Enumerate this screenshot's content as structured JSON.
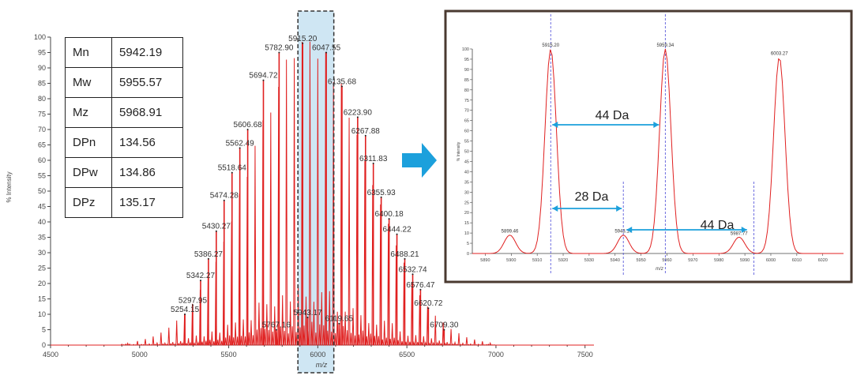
{
  "colors": {
    "trace": "#e02020",
    "axis": "#444444",
    "highlight": "#cfe6f3",
    "arrow": "#1ca0dc",
    "panel_border": "#4a3a30",
    "guide": "#4a4ad8"
  },
  "chart_data": [
    {
      "id": "main-spectrum",
      "type": "line",
      "xlabel": "m/z",
      "ylabel": "% Intensity",
      "xlim": [
        4500,
        7550
      ],
      "ylim": [
        0,
        100
      ],
      "xticks": [
        "4500",
        "5000",
        "5500",
        "6000",
        "6500",
        "7000",
        "7500"
      ],
      "yticks": [
        "0",
        "5",
        "10",
        "15",
        "20",
        "25",
        "30",
        "35",
        "40",
        "45",
        "50",
        "55",
        "60",
        "65",
        "70",
        "75",
        "80",
        "85",
        "90",
        "95",
        "100"
      ],
      "highlight_range": [
        5915,
        6090
      ],
      "peaks": [
        {
          "label": "5254.15",
          "x": 5254.15,
          "y": 10
        },
        {
          "label": "5297.95",
          "x": 5297.95,
          "y": 13
        },
        {
          "label": "5342.27",
          "x": 5342.27,
          "y": 21
        },
        {
          "label": "5386.27",
          "x": 5386.27,
          "y": 28
        },
        {
          "label": "5430.27",
          "x": 5430.27,
          "y": 37
        },
        {
          "label": "5474.28",
          "x": 5474.28,
          "y": 47
        },
        {
          "label": "5518.64",
          "x": 5518.64,
          "y": 56
        },
        {
          "label": "5562.49",
          "x": 5562.49,
          "y": 64
        },
        {
          "label": "5606.68",
          "x": 5606.68,
          "y": 70
        },
        {
          "label": "5694.72",
          "x": 5694.72,
          "y": 86
        },
        {
          "label": "5782.90",
          "x": 5782.9,
          "y": 95
        },
        {
          "label": "5915.20",
          "x": 5915.2,
          "y": 98
        },
        {
          "label": "6047.55",
          "x": 6047.55,
          "y": 95
        },
        {
          "label": "6135.68",
          "x": 6135.68,
          "y": 84
        },
        {
          "label": "6223.90",
          "x": 6223.9,
          "y": 74
        },
        {
          "label": "6267.88",
          "x": 6267.88,
          "y": 68
        },
        {
          "label": "6311.83",
          "x": 6311.83,
          "y": 59
        },
        {
          "label": "6355.93",
          "x": 6355.93,
          "y": 48
        },
        {
          "label": "6400.18",
          "x": 6400.18,
          "y": 41
        },
        {
          "label": "6444.22",
          "x": 6444.22,
          "y": 36
        },
        {
          "label": "6488.21",
          "x": 6488.21,
          "y": 28
        },
        {
          "label": "6532.74",
          "x": 6532.74,
          "y": 23
        },
        {
          "label": "6576.47",
          "x": 6576.47,
          "y": 18
        },
        {
          "label": "6620.72",
          "x": 6620.72,
          "y": 12
        },
        {
          "label": "6709.30",
          "x": 6709.3,
          "y": 5
        },
        {
          "label": "5767.16",
          "x": 5767.16,
          "y": 5
        },
        {
          "label": "5943.17",
          "x": 5943.17,
          "y": 9
        },
        {
          "label": "6119.65",
          "x": 6119.65,
          "y": 7
        }
      ],
      "stats_table": [
        {
          "key": "Mn",
          "value": "5942.19"
        },
        {
          "key": "Mw",
          "value": "5955.57"
        },
        {
          "key": "Mz",
          "value": "5968.91"
        },
        {
          "key": "DPn",
          "value": "134.56"
        },
        {
          "key": "DPw",
          "value": "134.86"
        },
        {
          "key": "DPz",
          "value": "135.17"
        }
      ]
    },
    {
      "id": "zoom-spectrum",
      "type": "line",
      "xlabel": "m/z",
      "ylabel": "% Intensity",
      "xlim": [
        5885,
        6028
      ],
      "ylim": [
        0,
        100
      ],
      "xticks": [
        "5890",
        "5900",
        "5910",
        "5920",
        "5930",
        "5940",
        "5950",
        "5960",
        "5970",
        "5980",
        "5990",
        "6000",
        "6010",
        "6020"
      ],
      "yticks": [
        "0",
        "5",
        "10",
        "15",
        "20",
        "25",
        "30",
        "35",
        "40",
        "45",
        "50",
        "55",
        "60",
        "65",
        "70",
        "75",
        "80",
        "85",
        "90",
        "95",
        "100"
      ],
      "peaks": [
        {
          "label": "5899.46",
          "x": 5899.46,
          "y": 9
        },
        {
          "label": "5915.20",
          "x": 5915.2,
          "y": 100
        },
        {
          "label": "5943.17",
          "x": 5943.17,
          "y": 9
        },
        {
          "label": "5959.34",
          "x": 5959.34,
          "y": 100
        },
        {
          "label": "5987.77",
          "x": 5987.77,
          "y": 8
        },
        {
          "label": "6003.27",
          "x": 6003.27,
          "y": 96
        }
      ],
      "guides": [
        5915.2,
        5959.34,
        5943.17,
        5993.5
      ],
      "annotations": [
        {
          "label": "44 Da",
          "from": 5915.2,
          "to": 5959.34,
          "y": 62
        },
        {
          "label": "28 Da",
          "from": 5915.2,
          "to": 5943.17,
          "y": 22
        },
        {
          "label": "44 Da",
          "from": 5943.17,
          "to": 5987.77,
          "y": 11
        }
      ]
    }
  ]
}
